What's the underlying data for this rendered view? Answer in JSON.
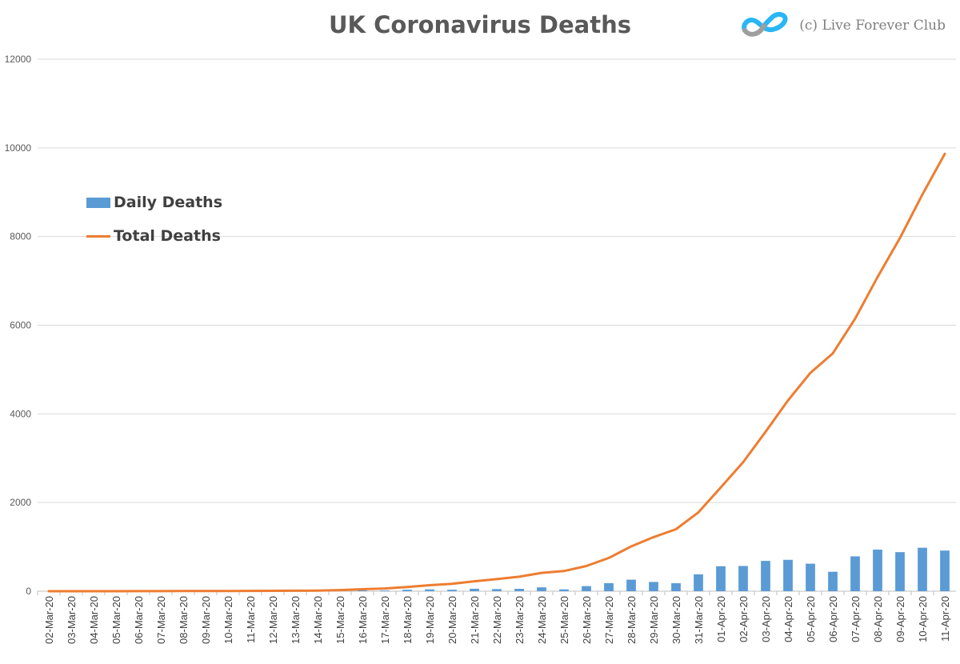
{
  "chart_data": {
    "type": "bar+line",
    "title": "UK Coronavirus Deaths",
    "watermark": "(c) Live Forever Club",
    "xlabel": "",
    "ylabel": "",
    "ylim": [
      0,
      12000
    ],
    "yticks": [
      0,
      2000,
      4000,
      6000,
      8000,
      10000,
      12000
    ],
    "grid": true,
    "legend_position": "left",
    "categories": [
      "02-Mar-20",
      "03-Mar-20",
      "04-Mar-20",
      "05-Mar-20",
      "06-Mar-20",
      "07-Mar-20",
      "08-Mar-20",
      "09-Mar-20",
      "10-Mar-20",
      "11-Mar-20",
      "12-Mar-20",
      "13-Mar-20",
      "14-Mar-20",
      "15-Mar-20",
      "16-Mar-20",
      "17-Mar-20",
      "18-Mar-20",
      "19-Mar-20",
      "20-Mar-20",
      "21-Mar-20",
      "22-Mar-20",
      "23-Mar-20",
      "24-Mar-20",
      "25-Mar-20",
      "26-Mar-20",
      "27-Mar-20",
      "28-Mar-20",
      "29-Mar-20",
      "30-Mar-20",
      "31-Mar-20",
      "01-Apr-20",
      "02-Apr-20",
      "03-Apr-20",
      "04-Apr-20",
      "05-Apr-20",
      "06-Apr-20",
      "07-Apr-20",
      "08-Apr-20",
      "09-Apr-20",
      "10-Apr-20",
      "11-Apr-20"
    ],
    "series": [
      {
        "name": "Daily Deaths",
        "type": "bar",
        "color": "#5b9bd5",
        "values": [
          0,
          0,
          0,
          0,
          1,
          1,
          1,
          0,
          3,
          2,
          1,
          2,
          1,
          14,
          20,
          16,
          33,
          40,
          33,
          56,
          48,
          54,
          87,
          41,
          115,
          181,
          260,
          209,
          180,
          381,
          563,
          569,
          684,
          708,
          621,
          439,
          786,
          938,
          881,
          980,
          917
        ]
      },
      {
        "name": "Total Deaths",
        "type": "line",
        "color": "#ed7d31",
        "values": [
          0,
          0,
          0,
          0,
          1,
          2,
          3,
          3,
          6,
          8,
          9,
          11,
          12,
          26,
          46,
          62,
          95,
          135,
          168,
          224,
          272,
          326,
          413,
          454,
          569,
          750,
          1010,
          1219,
          1399,
          1780,
          2343,
          2912,
          3596,
          4304,
          4925,
          5364,
          6150,
          7088,
          7969,
          8949,
          9866
        ]
      }
    ]
  }
}
